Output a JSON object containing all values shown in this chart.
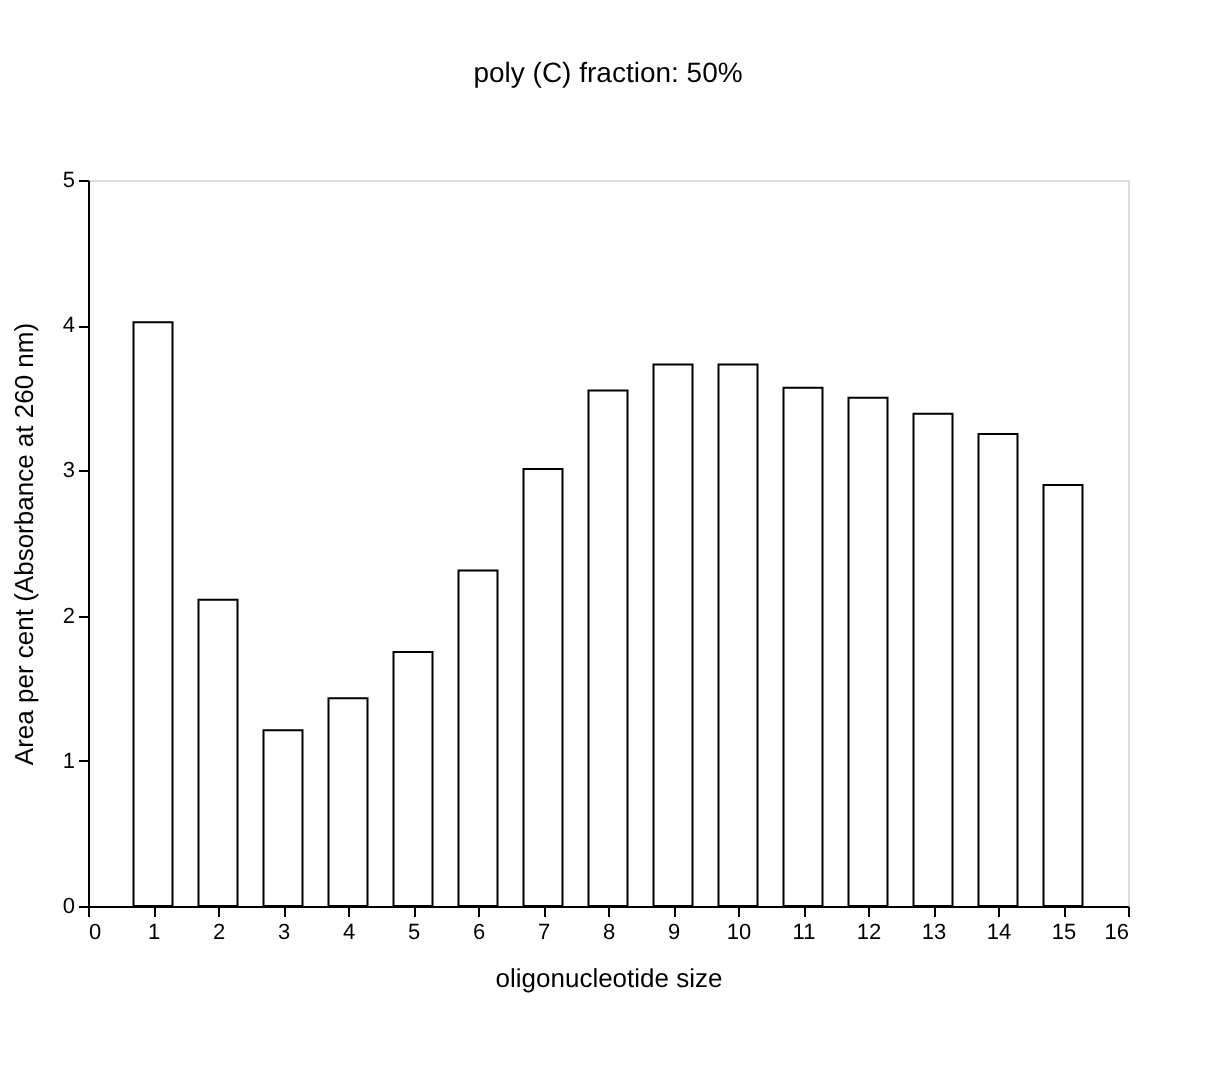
{
  "chart_data": {
    "type": "bar",
    "title": "poly (C) fraction: 50%",
    "xlabel": "oligonucleotide size",
    "ylabel": "Area per cent (Absorbance at 260 nm)",
    "x": [
      1,
      2,
      3,
      4,
      5,
      6,
      7,
      8,
      9,
      10,
      11,
      12,
      13,
      14,
      15
    ],
    "values": [
      4.02,
      2.11,
      1.21,
      1.43,
      1.75,
      2.31,
      3.01,
      3.55,
      3.73,
      3.73,
      3.57,
      3.5,
      3.39,
      3.25,
      2.9
    ],
    "color": "#ffffff",
    "xlim": [
      0,
      16
    ],
    "xticks": [
      0,
      1,
      2,
      3,
      4,
      5,
      6,
      7,
      8,
      9,
      10,
      11,
      12,
      13,
      14,
      15,
      16
    ],
    "ylim": [
      0,
      5
    ],
    "yticks": [
      0,
      1,
      2,
      3,
      4,
      5
    ],
    "grid": false
  }
}
